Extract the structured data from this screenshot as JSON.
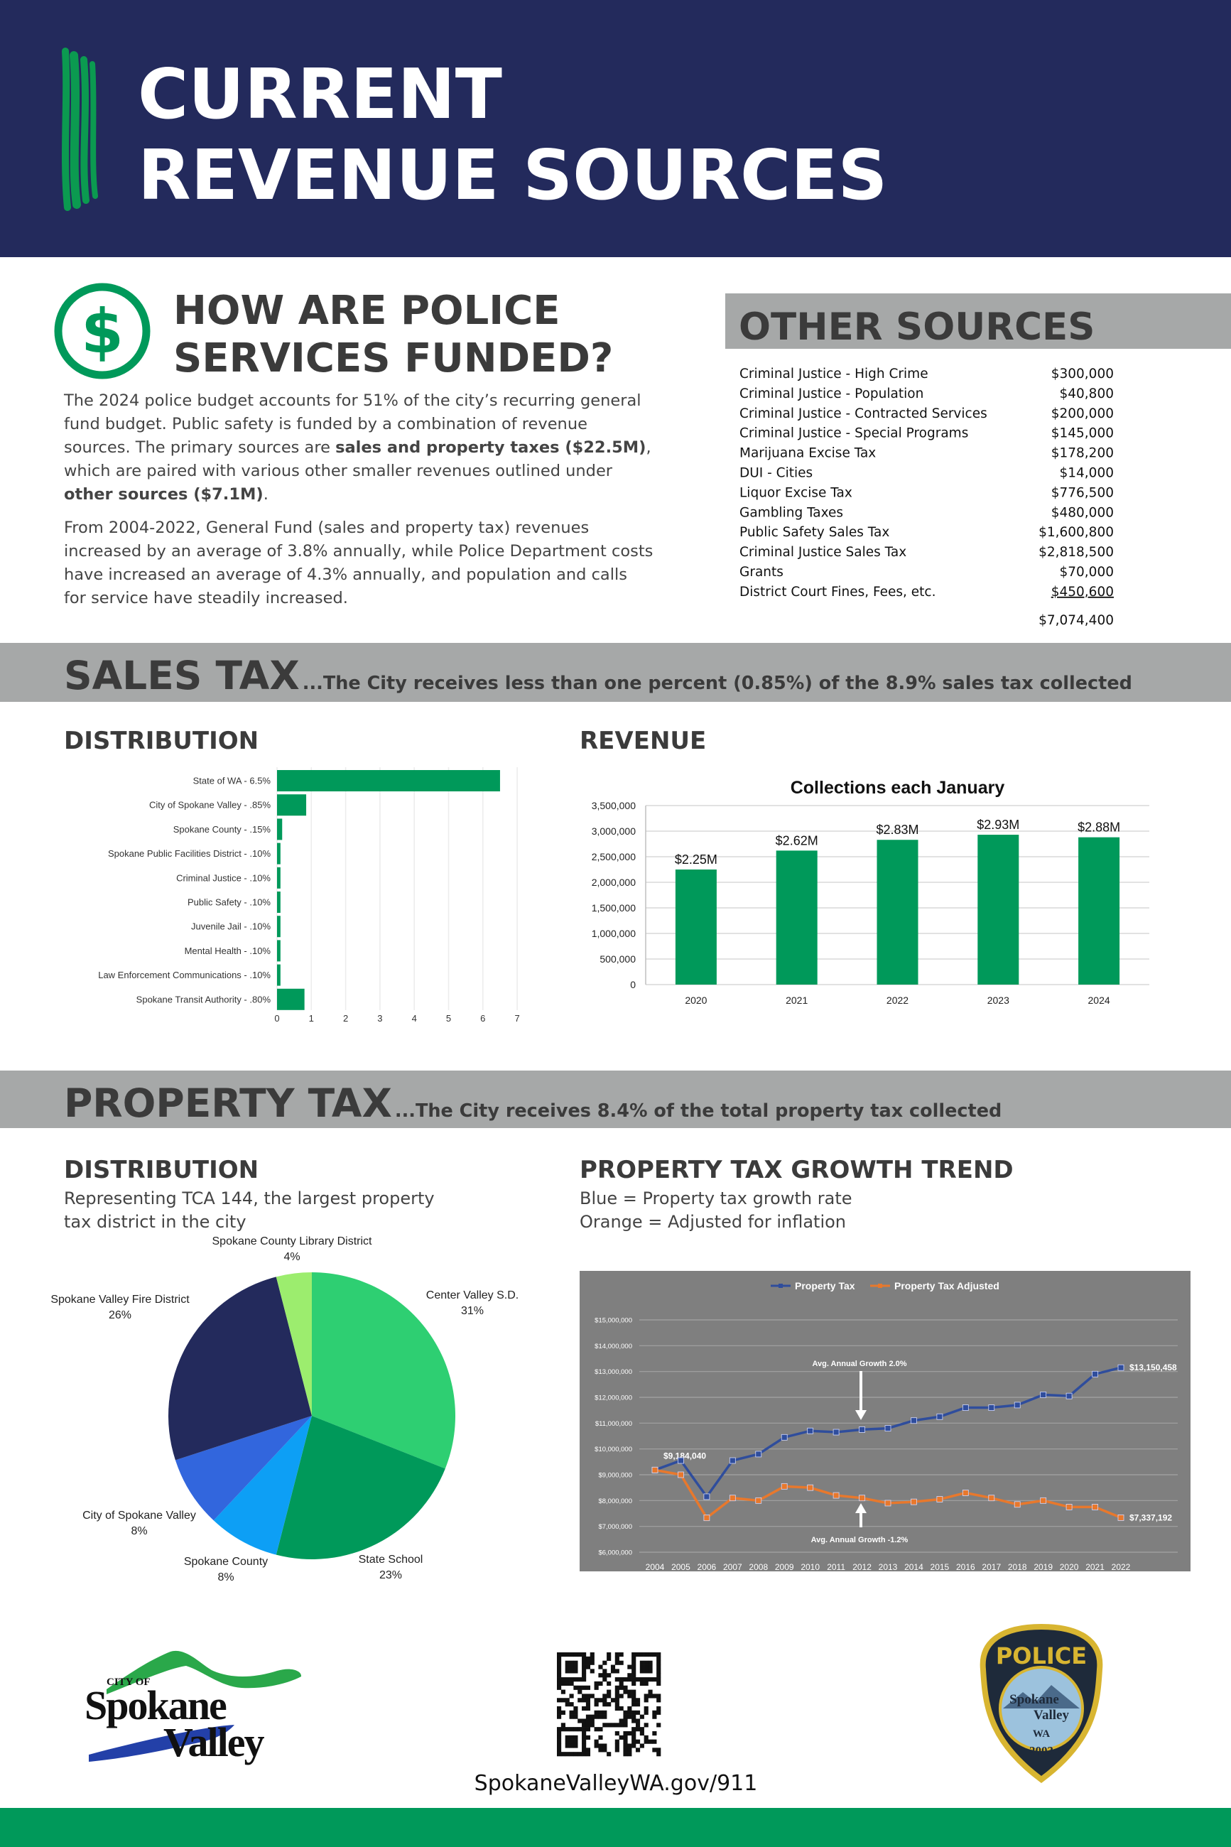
{
  "header": {
    "title": [
      "CURRENT",
      "REVENUE SOURCES"
    ]
  },
  "funding": {
    "icon": "$",
    "title": [
      "HOW ARE POLICE",
      "SERVICES FUNDED?"
    ],
    "paragraphs": [
      [
        {
          "text": "The 2024 police budget accounts for 51% of the city’s recurring general fund budget. Public safety is funded by a combination of revenue sources. The primary sources are ",
          "bold": false
        },
        {
          "text": "sales and property taxes ($22.5M)",
          "bold": true
        },
        {
          "text": ", which are paired with various other smaller revenues outlined under ",
          "bold": false
        },
        {
          "text": "other sources ($7.1M)",
          "bold": true
        },
        {
          "text": ".",
          "bold": false
        }
      ],
      [
        {
          "text": "From 2004-2022, General Fund (sales and property tax) revenues increased by an average of 3.8% annually, while Police Department costs have increased an average of 4.3% annually, and population and calls for service have steadily increased.",
          "bold": false
        }
      ]
    ]
  },
  "other_sources": {
    "title": "OTHER SOURCES",
    "rows": [
      [
        "Criminal Justice - High Crime",
        "$300,000"
      ],
      [
        "Criminal Justice - Population",
        "$40,800"
      ],
      [
        "Criminal Justice - Contracted Services",
        "$200,000"
      ],
      [
        "Criminal Justice - Special Programs",
        "$145,000"
      ],
      [
        "Marijuana Excise Tax",
        "$178,200"
      ],
      [
        "DUI - Cities",
        "$14,000"
      ],
      [
        "Liquor Excise Tax",
        "$776,500"
      ],
      [
        "Gambling Taxes",
        "$480,000"
      ],
      [
        "Public Safety Sales Tax",
        "$1,600,800"
      ],
      [
        "Criminal Justice Sales Tax",
        "$2,818,500"
      ],
      [
        "Grants",
        "$70,000"
      ],
      [
        "District Court Fines, Fees, etc.",
        "$450,600"
      ]
    ],
    "total": "$7,074,400"
  },
  "sales_tax": {
    "title": "SALES TAX",
    "subtitle": "...The City receives less than one percent (0.85%) of the 8.9% sales tax collected",
    "distribution_heading": "DISTRIBUTION",
    "revenue_heading": "REVENUE"
  },
  "property_tax": {
    "title": "PROPERTY TAX",
    "subtitle": "...The City receives 8.4% of the total property tax collected",
    "distribution_heading": "DISTRIBUTION",
    "distribution_note": [
      "Representing TCA 144, the largest property",
      "tax district in the city"
    ],
    "trend_heading": "PROPERTY TAX GROWTH TREND",
    "trend_note": [
      "Blue = Property tax growth rate",
      "Orange = Adjusted for inflation"
    ]
  },
  "chart_data": [
    {
      "type": "barh",
      "categories": [
        "State of WA - 6.5%",
        "City of Spokane Valley - .85%",
        "Spokane County - .15%",
        "Spokane Public Facilities District - .10%",
        "Criminal Justice - .10%",
        "Public Safety - .10%",
        "Juvenile Jail - .10%",
        "Mental Health - .10%",
        "Law Enforcement Communications - .10%",
        "Spokane Transit Authority - .80%"
      ],
      "values": [
        6.5,
        0.85,
        0.15,
        0.1,
        0.1,
        0.1,
        0.1,
        0.1,
        0.1,
        0.8
      ],
      "color": "#00995a",
      "xlim": [
        0,
        7
      ],
      "xticks": [
        0,
        1,
        2,
        3,
        4,
        5,
        6,
        7
      ],
      "grid": true
    },
    {
      "type": "bar",
      "title": "Collections each January",
      "categories": [
        "2020",
        "2021",
        "2022",
        "2023",
        "2024"
      ],
      "values": [
        2250000,
        2620000,
        2830000,
        2930000,
        2880000
      ],
      "value_labels": [
        "$2.25M",
        "$2.62M",
        "$2.83M",
        "$2.93M",
        "$2.88M"
      ],
      "color": "#00995a",
      "ylim": [
        0,
        3500000
      ],
      "yticks": [
        0,
        {
          "value": 500000,
          "label": "500,000"
        },
        {
          "value": 1000000,
          "label": "1,000,000"
        },
        {
          "value": 1500000,
          "label": "1,500,000"
        },
        {
          "value": 2000000,
          "label": "2,000,000"
        },
        {
          "value": 2500000,
          "label": "2,500,000"
        },
        {
          "value": 3000000,
          "label": "3,000,000"
        },
        {
          "value": 3500000,
          "label": "3,500,000"
        }
      ],
      "grid": true
    },
    {
      "type": "pie",
      "categories": [
        "Center Valley S.D.",
        "State School",
        "Spokane County",
        "City of Spokane Valley",
        "Spokane Valley Fire District",
        "Spokane County Library District"
      ],
      "values": [
        31,
        23,
        8,
        8,
        26,
        4
      ],
      "value_labels": [
        "31%",
        "23%",
        "8%",
        "8%",
        "26%",
        "4%"
      ],
      "colors": [
        "#2ecf72",
        "#00995a",
        "#0d9ff5",
        "#3266dd",
        "#232a5c",
        "#9ced6e"
      ]
    },
    {
      "type": "line",
      "categories": [
        "2004",
        "2005",
        "2006",
        "2007",
        "2008",
        "2009",
        "2010",
        "2011",
        "2012",
        "2013",
        "2014",
        "2015",
        "2016",
        "2017",
        "2018",
        "2019",
        "2020",
        "2021",
        "2022"
      ],
      "series": [
        {
          "name": "Property Tax",
          "color": "#2f4d9c",
          "values": [
            9184040,
            9550000,
            8150000,
            9550000,
            9800000,
            10450000,
            10700000,
            10650000,
            10750000,
            10800000,
            11100000,
            11250000,
            11600000,
            11600000,
            11700000,
            12100000,
            12050000,
            12900000,
            13150458
          ],
          "value_labels": [
            "$9,184,040",
            null,
            null,
            null,
            null,
            null,
            null,
            null,
            null,
            null,
            null,
            null,
            null,
            null,
            null,
            null,
            null,
            null,
            "$13,150,458"
          ]
        },
        {
          "name": "Property Tax Adjusted",
          "color": "#e8782c",
          "values": [
            9184040,
            9000000,
            7330000,
            8100000,
            8000000,
            8550000,
            8500000,
            8200000,
            8100000,
            7900000,
            7950000,
            8050000,
            8300000,
            8100000,
            7850000,
            8000000,
            7750000,
            7750000,
            7337192
          ],
          "value_labels": [
            null,
            null,
            null,
            null,
            null,
            null,
            null,
            null,
            null,
            null,
            null,
            null,
            null,
            null,
            null,
            null,
            null,
            null,
            "$7,337,192"
          ]
        }
      ],
      "ylim": [
        6000000,
        15000000
      ],
      "yticks": [
        {
          "value": 6000000,
          "label": "$6,000,000"
        },
        {
          "value": 7000000,
          "label": "$7,000,000"
        },
        {
          "value": 8000000,
          "label": "$8,000,000"
        },
        {
          "value": 9000000,
          "label": "$9,000,000"
        },
        {
          "value": 10000000,
          "label": "$10,000,000"
        },
        {
          "value": 11000000,
          "label": "$11,000,000"
        },
        {
          "value": 12000000,
          "label": "$12,000,000"
        },
        {
          "value": 13000000,
          "label": "$13,000,000"
        },
        {
          "value": 14000000,
          "label": "$14,000,000"
        },
        {
          "value": 15000000,
          "label": "$15,000,000"
        }
      ],
      "annotations": [
        "Avg. Annual Growth 2.0%",
        "Avg. Annual Growth -1.2%"
      ],
      "grid": true
    }
  ],
  "footer": {
    "city_logo": [
      "CITY OF",
      "Spokane",
      "Valley"
    ],
    "url": "SpokaneValleyWA.gov/911",
    "badge": [
      "POLICE",
      "Spokane",
      "Valley",
      "WA",
      "2003"
    ]
  }
}
